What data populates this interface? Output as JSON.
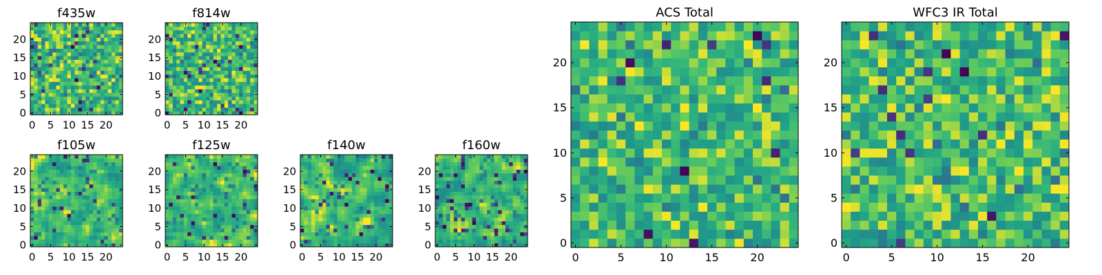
{
  "figure": {
    "background": "#ffffff",
    "colormap": "viridis",
    "note": "25x25 pixel images; cell values are normalized intensities (0-1) drawn with a viridis-like colormap (mostly green/yellow with sparse dark cells)"
  },
  "chart_data": [
    {
      "name": "f435w",
      "type": "heatmap",
      "title": "f435w",
      "grid": false,
      "shape": [
        25,
        25
      ],
      "xlim": [
        -0.5,
        24.5
      ],
      "ylim": [
        -0.5,
        24.5
      ],
      "xticks": [
        0,
        5,
        10,
        15,
        20
      ],
      "yticks": [
        0,
        5,
        10,
        15,
        20
      ],
      "seed": 11,
      "smooth": 0,
      "dark_fraction": 0.04
    },
    {
      "name": "f814w",
      "type": "heatmap",
      "title": "f814w",
      "grid": false,
      "shape": [
        25,
        25
      ],
      "xlim": [
        -0.5,
        24.5
      ],
      "ylim": [
        -0.5,
        24.5
      ],
      "xticks": [
        0,
        5,
        10,
        15,
        20
      ],
      "yticks": [
        0,
        5,
        10,
        15,
        20
      ],
      "seed": 23,
      "smooth": 0,
      "dark_fraction": 0.04
    },
    {
      "name": "f105w",
      "type": "heatmap",
      "title": "f105w",
      "grid": false,
      "shape": [
        25,
        25
      ],
      "xlim": [
        -0.5,
        24.5
      ],
      "ylim": [
        -0.5,
        24.5
      ],
      "xticks": [
        0,
        5,
        10,
        15,
        20
      ],
      "yticks": [
        0,
        5,
        10,
        15,
        20
      ],
      "seed": 37,
      "smooth": 1,
      "dark_fraction": 0.03
    },
    {
      "name": "f125w",
      "type": "heatmap",
      "title": "f125w",
      "grid": false,
      "shape": [
        25,
        25
      ],
      "xlim": [
        -0.5,
        24.5
      ],
      "ylim": [
        -0.5,
        24.5
      ],
      "xticks": [
        0,
        5,
        10,
        15,
        20
      ],
      "yticks": [
        0,
        5,
        10,
        15,
        20
      ],
      "seed": 41,
      "smooth": 1,
      "dark_fraction": 0.02
    },
    {
      "name": "f140w",
      "type": "heatmap",
      "title": "f140w",
      "grid": false,
      "shape": [
        25,
        25
      ],
      "xlim": [
        -0.5,
        24.5
      ],
      "ylim": [
        -0.5,
        24.5
      ],
      "xticks": [
        0,
        5,
        10,
        15,
        20
      ],
      "yticks": [
        0,
        5,
        10,
        15,
        20
      ],
      "seed": 53,
      "smooth": 1,
      "dark_fraction": 0.05
    },
    {
      "name": "f160w",
      "type": "heatmap",
      "title": "f160w",
      "grid": false,
      "shape": [
        25,
        25
      ],
      "xlim": [
        -0.5,
        24.5
      ],
      "ylim": [
        -0.5,
        24.5
      ],
      "xticks": [
        0,
        5,
        10,
        15,
        20
      ],
      "yticks": [
        0,
        5,
        10,
        15,
        20
      ],
      "seed": 67,
      "smooth": 1,
      "dark_fraction": 0.05
    },
    {
      "name": "acs-total",
      "type": "heatmap",
      "title": "ACS Total",
      "grid": false,
      "shape": [
        25,
        25
      ],
      "xlim": [
        -0.5,
        24.5
      ],
      "ylim": [
        -0.5,
        24.5
      ],
      "xticks": [
        0,
        5,
        10,
        15,
        20
      ],
      "yticks": [
        0,
        5,
        10,
        15,
        20
      ],
      "seed": 79,
      "smooth": 0,
      "dark_fraction": 0.025
    },
    {
      "name": "wfc3-ir-total",
      "type": "heatmap",
      "title": "WFC3 IR Total",
      "grid": false,
      "shape": [
        25,
        25
      ],
      "xlim": [
        -0.5,
        24.5
      ],
      "ylim": [
        -0.5,
        24.5
      ],
      "xticks": [
        0,
        5,
        10,
        15,
        20
      ],
      "yticks": [
        0,
        5,
        10,
        15,
        20
      ],
      "seed": 97,
      "smooth": 0,
      "dark_fraction": 0.025
    }
  ]
}
